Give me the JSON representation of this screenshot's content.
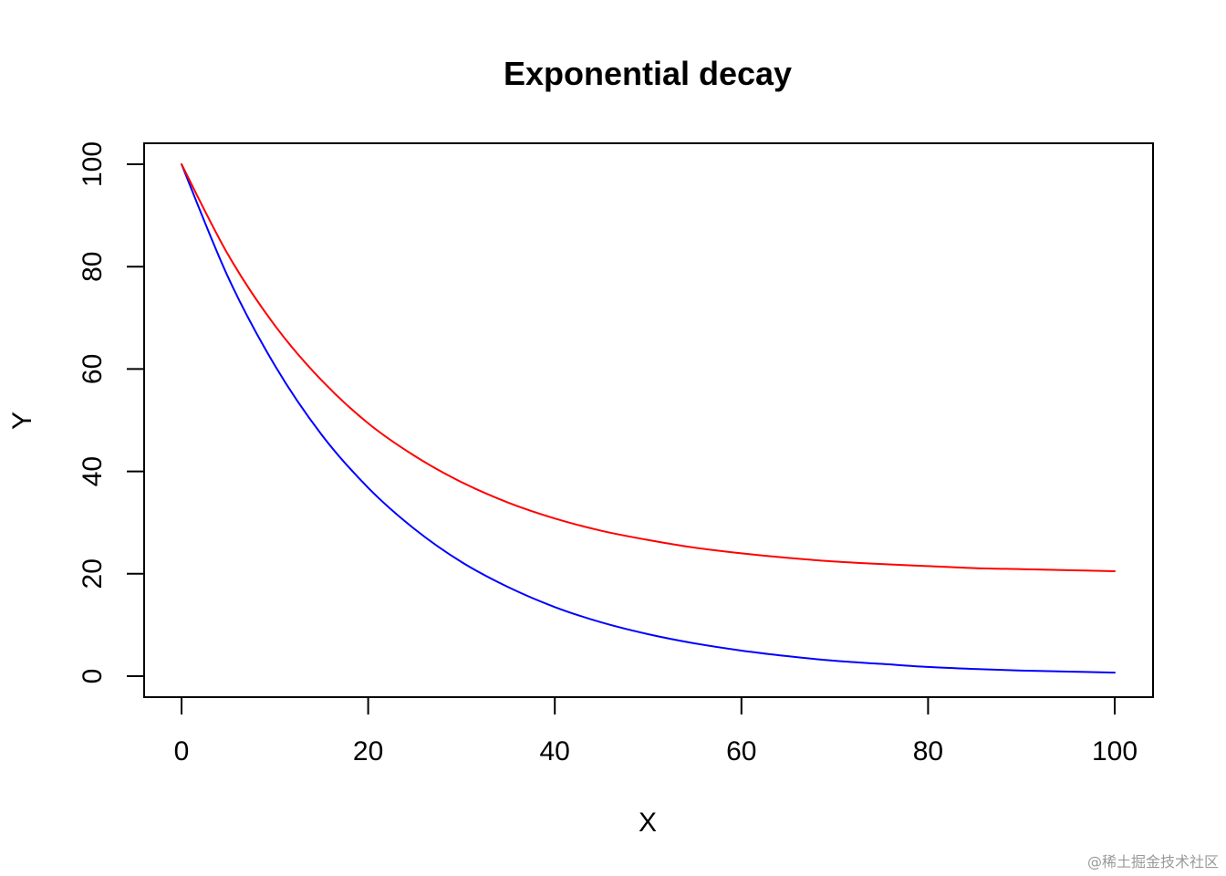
{
  "chart_data": {
    "type": "line",
    "title": "Exponential decay",
    "xlabel": "X",
    "ylabel": "Y",
    "xlim": [
      0,
      100
    ],
    "ylim": [
      0,
      100
    ],
    "x_ticks": [
      0,
      20,
      40,
      60,
      80,
      100
    ],
    "y_ticks": [
      0,
      20,
      40,
      60,
      80,
      100
    ],
    "x_tick_labels": [
      "0",
      "20",
      "40",
      "60",
      "80",
      "100"
    ],
    "y_tick_labels": [
      "0",
      "20",
      "40",
      "60",
      "80",
      "100"
    ],
    "grid": false,
    "legend": "none",
    "x": [
      0,
      5,
      10,
      15,
      20,
      25,
      30,
      35,
      40,
      45,
      50,
      55,
      60,
      65,
      70,
      75,
      80,
      85,
      90,
      95,
      100
    ],
    "series": [
      {
        "color": "#0000FF",
        "values": [
          100,
          77.9,
          60.7,
          47.2,
          36.8,
          28.7,
          22.3,
          17.4,
          13.5,
          10.5,
          8.2,
          6.4,
          5.0,
          3.9,
          3.0,
          2.4,
          1.8,
          1.4,
          1.1,
          0.9,
          0.7
        ]
      },
      {
        "color": "#FF0000",
        "values": [
          100,
          82.3,
          68.5,
          57.8,
          49.4,
          43.0,
          37.9,
          33.9,
          30.8,
          28.4,
          26.6,
          25.1,
          24.0,
          23.1,
          22.4,
          21.9,
          21.5,
          21.1,
          20.9,
          20.7,
          20.5
        ]
      }
    ]
  },
  "watermark": "@稀土掘金技术社区"
}
